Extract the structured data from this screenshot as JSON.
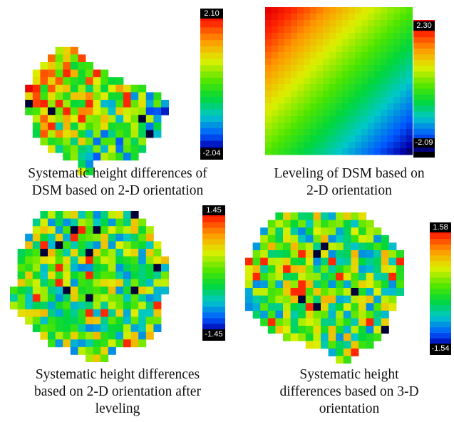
{
  "panels": [
    {
      "id": "p1",
      "kind": "scatter",
      "shape": [
        [
          3,
          6,
          8
        ],
        [
          4,
          5,
          9
        ],
        [
          5,
          4,
          10
        ],
        [
          6,
          3,
          12
        ],
        [
          7,
          3,
          14
        ],
        [
          8,
          2,
          17
        ],
        [
          9,
          2,
          19
        ],
        [
          10,
          2,
          20
        ],
        [
          11,
          2,
          20
        ],
        [
          12,
          3,
          19
        ],
        [
          13,
          3,
          19
        ],
        [
          14,
          3,
          19
        ],
        [
          15,
          4,
          17
        ],
        [
          16,
          5,
          17
        ],
        [
          17,
          7,
          16
        ],
        [
          18,
          9,
          10
        ],
        [
          19,
          9,
          10
        ]
      ],
      "bias": "ne_to_sw",
      "max_label": "2.10",
      "min_label": "-2.04",
      "caption": [
        "Systematic height differences of",
        "DSM based on 2-D orientation"
      ]
    },
    {
      "id": "p2",
      "kind": "gradient",
      "max_label": "2.30",
      "min_label": "-2.09",
      "caption": [
        "Leveling of DSM based on",
        "2-D orientation"
      ]
    },
    {
      "id": "p3",
      "kind": "scatter",
      "shape": [
        [
          0,
          4,
          16
        ],
        [
          1,
          3,
          17
        ],
        [
          2,
          3,
          18
        ],
        [
          3,
          2,
          18
        ],
        [
          4,
          2,
          19
        ],
        [
          5,
          1,
          19
        ],
        [
          6,
          1,
          20
        ],
        [
          7,
          1,
          20
        ],
        [
          8,
          1,
          20
        ],
        [
          9,
          1,
          20
        ],
        [
          10,
          0,
          20
        ],
        [
          11,
          0,
          19
        ],
        [
          12,
          0,
          19
        ],
        [
          13,
          1,
          19
        ],
        [
          14,
          2,
          19
        ],
        [
          15,
          3,
          19
        ],
        [
          16,
          4,
          18
        ],
        [
          17,
          5,
          17
        ],
        [
          18,
          8,
          13
        ],
        [
          19,
          10,
          12
        ]
      ],
      "bias": "none",
      "max_label": "1.45",
      "min_label": "-1.45",
      "caption": [
        "Systematic height differences",
        "based on 2-D orientation after",
        "leveling"
      ]
    },
    {
      "id": "p4",
      "kind": "scatter",
      "shape": [
        [
          0,
          4,
          15
        ],
        [
          1,
          3,
          16
        ],
        [
          2,
          2,
          17
        ],
        [
          3,
          2,
          18
        ],
        [
          4,
          1,
          19
        ],
        [
          5,
          1,
          20
        ],
        [
          6,
          0,
          20
        ],
        [
          7,
          0,
          20
        ],
        [
          8,
          0,
          20
        ],
        [
          9,
          0,
          20
        ],
        [
          10,
          0,
          20
        ],
        [
          11,
          0,
          19
        ],
        [
          12,
          0,
          19
        ],
        [
          13,
          1,
          18
        ],
        [
          14,
          2,
          18
        ],
        [
          15,
          3,
          18
        ],
        [
          16,
          5,
          17
        ],
        [
          17,
          8,
          16
        ],
        [
          18,
          11,
          14
        ],
        [
          19,
          12,
          13
        ]
      ],
      "bias": "none",
      "max_label": "1.58",
      "min_label": "-1.54",
      "caption": [
        "Systematic height",
        "differences based on 3-D",
        "orientation"
      ]
    }
  ]
}
